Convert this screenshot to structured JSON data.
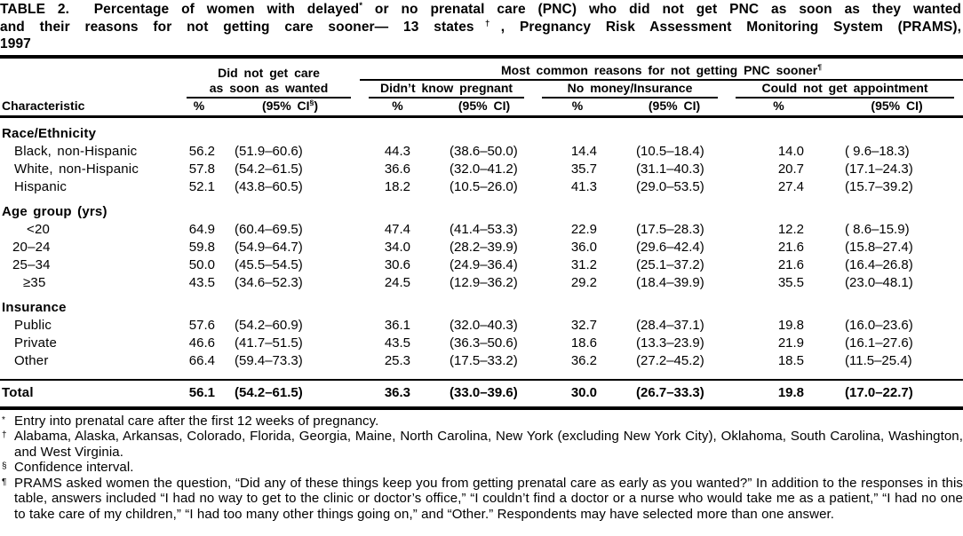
{
  "title": {
    "lines": [
      {
        "justify": true,
        "parts": [
          {
            "t": "TABLE 2.  Percentage of women with delayed"
          },
          {
            "sup": "*"
          },
          {
            "t": " or no prenatal care (PNC) who did not get PNC as soon as they wanted"
          }
        ]
      },
      {
        "justify": true,
        "parts": [
          {
            "t": "and their reasons for not getting care sooner— 13 states"
          },
          {
            "sup": "†"
          },
          {
            "t": ", Pregnancy Risk Assessment Monitoring System (PRAMS),"
          }
        ]
      },
      {
        "justify": false,
        "parts": [
          {
            "t": "1997"
          }
        ]
      }
    ]
  },
  "header": {
    "characteristic": "Characteristic",
    "group1_line1": "Did not get care",
    "group1_line2": "as soon as wanted",
    "group2_label": "Most common reasons for not getting PNC sooner",
    "group2_sup": "¶",
    "subgroups": [
      "Didn’t know pregnant",
      "No money/Insurance",
      "Could not get appointment"
    ],
    "pct": "%",
    "ci": "(95% CI)",
    "ci_sup_pre": "(95% CI",
    "ci_sup_sym": "§",
    "ci_sup_post": ")"
  },
  "table": {
    "rows": [
      {
        "type": "section",
        "label": "Race/Ethnicity"
      },
      {
        "type": "data",
        "indent": 16,
        "label": "Black, non-Hispanic",
        "values": [
          "56.2",
          "(51.9–60.6)",
          "44.3",
          "(38.6–50.0)",
          "14.4",
          "(10.5–18.4)",
          "14.0",
          "( 9.6–18.3)"
        ]
      },
      {
        "type": "data",
        "indent": 16,
        "label": "White, non-Hispanic",
        "values": [
          "57.8",
          "(54.2–61.5)",
          "36.6",
          "(32.0–41.2)",
          "35.7",
          "(31.1–40.3)",
          "20.7",
          "(17.1–24.3)"
        ]
      },
      {
        "type": "data",
        "indent": 16,
        "label": "Hispanic",
        "values": [
          "52.1",
          "(43.8–60.5)",
          "18.2",
          "(10.5–26.0)",
          "41.3",
          "(29.0–53.5)",
          "27.4",
          "(15.7–39.2)"
        ]
      },
      {
        "type": "section",
        "label": "Age group (yrs)"
      },
      {
        "type": "data",
        "indent": 30,
        "label": "<20",
        "values": [
          "64.9",
          "(60.4–69.5)",
          "47.4",
          "(41.4–53.3)",
          "22.9",
          "(17.5–28.3)",
          "12.2",
          "( 8.6–15.9)"
        ]
      },
      {
        "type": "data",
        "indent": 14,
        "label": "20–24",
        "values": [
          "59.8",
          "(54.9–64.7)",
          "34.0",
          "(28.2–39.9)",
          "36.0",
          "(29.6–42.4)",
          "21.6",
          "(15.8–27.4)"
        ]
      },
      {
        "type": "data",
        "indent": 14,
        "label": "25–34",
        "values": [
          "50.0",
          "(45.5–54.5)",
          "30.6",
          "(24.9–36.4)",
          "31.2",
          "(25.1–37.2)",
          "21.6",
          "(16.4–26.8)"
        ]
      },
      {
        "type": "data",
        "indent": 26,
        "label": "≥35",
        "values": [
          "43.5",
          "(34.6–52.3)",
          "24.5",
          "(12.9–36.2)",
          "29.2",
          "(18.4–39.9)",
          "35.5",
          "(23.0–48.1)"
        ]
      },
      {
        "type": "section",
        "label": "Insurance"
      },
      {
        "type": "data",
        "indent": 16,
        "label": "Public",
        "values": [
          "57.6",
          "(54.2–60.9)",
          "36.1",
          "(32.0–40.3)",
          "32.7",
          "(28.4–37.1)",
          "19.8",
          "(16.0–23.6)"
        ]
      },
      {
        "type": "data",
        "indent": 16,
        "label": "Private",
        "values": [
          "46.6",
          "(41.7–51.5)",
          "43.5",
          "(36.3–50.6)",
          "18.6",
          "(13.3–23.9)",
          "21.9",
          "(16.1–27.6)"
        ]
      },
      {
        "type": "data",
        "indent": 16,
        "label": "Other",
        "pad_bottom": true,
        "values": [
          "66.4",
          "(59.4–73.3)",
          "25.3",
          "(17.5–33.2)",
          "36.2",
          "(27.2–45.2)",
          "18.5",
          "(11.5–25.4)"
        ]
      },
      {
        "type": "total",
        "indent": 0,
        "label": "Total",
        "values": [
          "56.1",
          "(54.2–61.5)",
          "36.3",
          "(33.0–39.6)",
          "30.0",
          "(26.7–33.3)",
          "19.8",
          "(17.0–22.7)"
        ]
      }
    ]
  },
  "footnotes": [
    {
      "sym": "*",
      "text": "Entry into prenatal care after the first 12 weeks of pregnancy."
    },
    {
      "sym": "†",
      "text": "Alabama, Alaska, Arkansas, Colorado, Florida, Georgia, Maine, North Carolina, New York (excluding New York City), Oklahoma, South Carolina, Washington, and West Virginia."
    },
    {
      "sym": "§",
      "text": "Confidence interval."
    },
    {
      "sym": "¶",
      "text": "PRAMS asked women the question, “Did any of these things keep you from getting prenatal care as early as you wanted?” In addition to the responses in this table, answers included “I had no way to get to the clinic or doctor’s office,” “I couldn’t find a doctor or a nurse who would take me as a patient,” “I had no one to take care of my children,” “I had too many other things going on,” and “Other.” Respondents may have selected more than one answer."
    }
  ]
}
